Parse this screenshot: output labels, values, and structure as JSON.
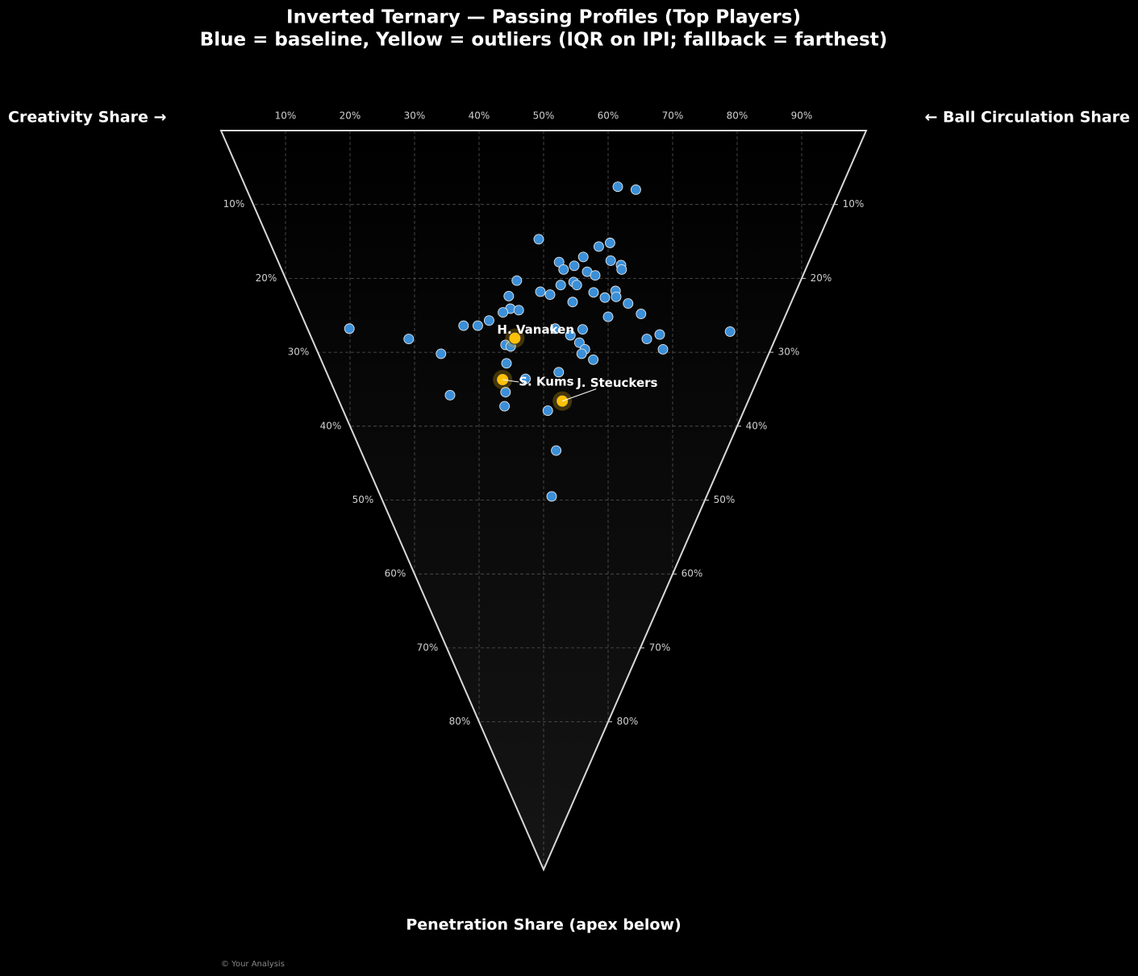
{
  "chart_data": {
    "type": "ternary-scatter",
    "title": "Inverted Ternary — Passing Profiles (Top Players)",
    "subtitle": "Blue = baseline, Yellow = outliers (IQR on IPI; fallback = farthest)",
    "left_label": "Creativity Share →",
    "right_label": "← Ball Circulation Share",
    "bottom_label": "Penetration Share (apex below)",
    "credit": "© Your Analysis",
    "creativity_lim": [
      0,
      100
    ],
    "penetration_lim": [
      0,
      100
    ],
    "creativity_ticks": [
      {
        "value": 10,
        "label": "10%"
      },
      {
        "value": 20,
        "label": "20%"
      },
      {
        "value": 30,
        "label": "30%"
      },
      {
        "value": 40,
        "label": "40%"
      },
      {
        "value": 50,
        "label": "50%"
      },
      {
        "value": 60,
        "label": "60%"
      },
      {
        "value": 70,
        "label": "70%"
      },
      {
        "value": 80,
        "label": "80%"
      },
      {
        "value": 90,
        "label": "90%"
      }
    ],
    "penetration_ticks": [
      {
        "value": 10,
        "label": "10%"
      },
      {
        "value": 20,
        "label": "20%"
      },
      {
        "value": 30,
        "label": "30%"
      },
      {
        "value": 40,
        "label": "40%"
      },
      {
        "value": 50,
        "label": "50%"
      },
      {
        "value": 60,
        "label": "60%"
      },
      {
        "value": 70,
        "label": "70%"
      },
      {
        "value": 80,
        "label": "80%"
      }
    ],
    "right_ticks": [
      {
        "value": 10,
        "label": "10%"
      },
      {
        "value": 20,
        "label": "20%"
      },
      {
        "value": 30,
        "label": "30%"
      },
      {
        "value": 40,
        "label": "40%"
      },
      {
        "value": 50,
        "label": "50%"
      },
      {
        "value": 60,
        "label": "60%"
      },
      {
        "value": 70,
        "label": "70%"
      },
      {
        "value": 80,
        "label": "80%"
      }
    ],
    "grid": true,
    "series": [
      {
        "color": "#3a8fd8",
        "creativity": [
          57.7,
          60.3,
          41.9,
          52.7,
          50.7,
          47.6,
          43.5,
          45.6,
          43.7,
          51.6,
          52.9,
          52.7,
          47.2,
          48.2,
          35.7,
          44.4,
          44.7,
          42.2,
          38.6,
          39.9,
          33.4,
          46.8,
          50.3,
          48.2,
          50.0,
          51.4,
          42.9,
          32.8,
          34.0,
          31.4,
          52.7,
          47.4,
          28.7,
          24.4,
          26.6,
          6.5,
          38.4,
          42.6,
          40.3,
          54.2,
          65.3,
          15.0,
          51.9,
          41.2,
          29.6,
          30.3,
          41.6,
          40.8,
          53.7,
          19.0,
          42.2,
          28.5,
          36.0,
          30.4,
          26.4,
          17.6,
          25.3,
          31.7,
          30.3,
          26.5
        ],
        "penetration": [
          7.6,
          8.0,
          14.7,
          15.2,
          15.7,
          17.1,
          17.8,
          18.3,
          18.8,
          17.6,
          18.2,
          18.8,
          19.1,
          19.6,
          20.3,
          20.5,
          20.9,
          20.9,
          21.8,
          22.2,
          22.4,
          21.9,
          21.7,
          22.6,
          22.5,
          23.4,
          23.2,
          24.1,
          24.3,
          24.6,
          24.8,
          25.2,
          25.7,
          26.4,
          26.4,
          26.8,
          26.8,
          26.9,
          27.7,
          27.6,
          27.2,
          28.2,
          28.2,
          28.7,
          29.0,
          29.2,
          29.6,
          30.2,
          29.6,
          30.2,
          31.0,
          31.5,
          32.7,
          33.6,
          35.4,
          35.8,
          37.3,
          37.9,
          43.3,
          49.5
        ]
      },
      {
        "color": "#ffc107",
        "labels": [
          "H. Vanaken",
          "S. Kums",
          "J. Steuckers"
        ],
        "creativity": [
          31.5,
          26.8,
          34.6
        ],
        "penetration": [
          28.1,
          33.7,
          36.6
        ]
      }
    ]
  }
}
